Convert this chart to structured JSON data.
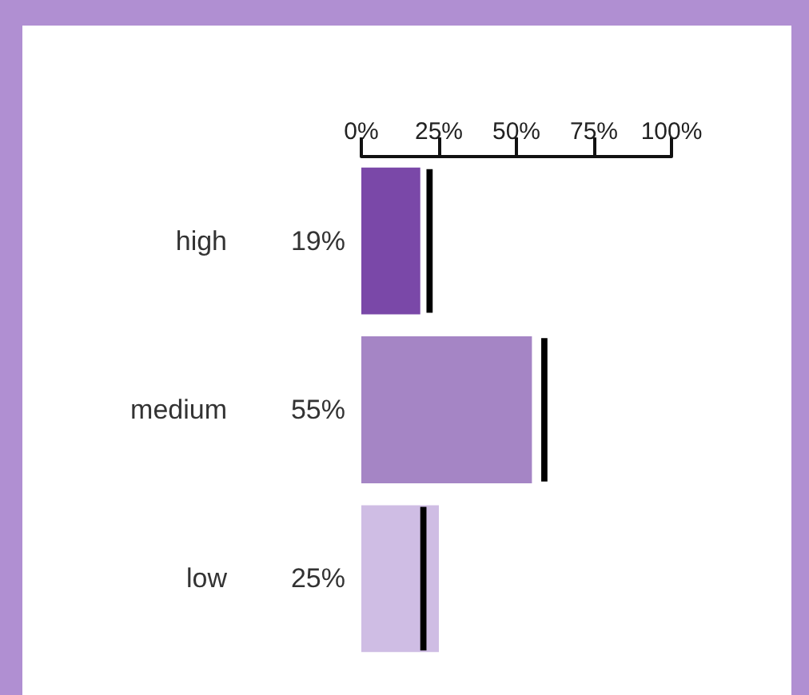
{
  "chart_data": {
    "type": "bar",
    "orientation": "horizontal",
    "categories": [
      "high",
      "medium",
      "low"
    ],
    "series": [
      {
        "colors": [
          "#7a48a8",
          "#a585c5",
          "#cfbde4"
        ],
        "values": [
          19,
          55,
          25
        ],
        "value_labels": [
          "19%",
          "55%",
          "25%"
        ]
      },
      {
        "color": "#000000",
        "base": [
          21,
          58,
          19
        ],
        "values": [
          2,
          2,
          2
        ]
      }
    ],
    "xlim": [
      0,
      100
    ],
    "xticks": [
      {
        "value": 0,
        "label": "0%"
      },
      {
        "value": 25,
        "label": "25%"
      },
      {
        "value": 50,
        "label": "50%"
      },
      {
        "value": 75,
        "label": "75%"
      },
      {
        "value": 100,
        "label": "100%"
      }
    ],
    "grid": false
  }
}
